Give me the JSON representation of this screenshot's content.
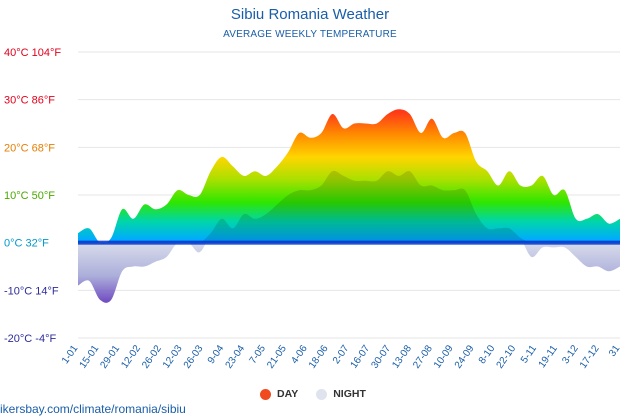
{
  "header": {
    "title": "Sibiu Romania Weather",
    "subtitle": "AVERAGE WEEKLY TEMPERATURE"
  },
  "legend": {
    "day_label": "DAY",
    "night_label": "NIGHT",
    "day_color": "#f04a1e",
    "night_color": "#dfe3ee"
  },
  "source": "ikersbay.com/climate/romania/sibiu",
  "chart_data": {
    "type": "area",
    "title": "Sibiu Romania Weather",
    "subtitle": "AVERAGE WEEKLY TEMPERATURE",
    "ylim": [
      -20,
      40
    ],
    "y_ticks": [
      {
        "value": 40,
        "label": "40°C 104°F",
        "color": "#e3001b"
      },
      {
        "value": 30,
        "label": "30°C 86°F",
        "color": "#e3001b"
      },
      {
        "value": 20,
        "label": "20°C 68°F",
        "color": "#e67e00"
      },
      {
        "value": 10,
        "label": "10°C 50°F",
        "color": "#4aa800"
      },
      {
        "value": 0,
        "label": "0°C 32°F",
        "color": "#0099cc"
      },
      {
        "value": -10,
        "label": "-10°C 14°F",
        "color": "#2d2d99"
      },
      {
        "value": -20,
        "label": "-20°C -4°F",
        "color": "#2d2d99"
      }
    ],
    "x_tick_labels": [
      "1-01",
      "15-01",
      "29-01",
      "12-02",
      "26-02",
      "12-03",
      "26-03",
      "9-04",
      "23-04",
      "7-05",
      "21-05",
      "4-06",
      "18-06",
      "2-07",
      "16-07",
      "30-07",
      "13-08",
      "27-08",
      "10-09",
      "24-09",
      "8-10",
      "22-10",
      "5-11",
      "19-11",
      "3-12",
      "17-12",
      "31"
    ],
    "grid": true,
    "legend_position": "bottom-center",
    "series": [
      {
        "name": "DAY",
        "values": [
          2,
          3,
          0,
          1,
          7,
          5,
          8,
          7,
          8,
          11,
          10,
          10,
          15,
          18,
          16,
          14,
          15,
          14,
          16,
          19,
          23,
          22,
          23,
          27,
          24,
          25,
          25,
          25,
          27,
          28,
          27,
          23,
          26,
          22,
          23,
          23,
          17,
          15,
          12,
          15,
          12,
          12,
          14,
          10,
          11,
          5,
          5,
          6,
          4,
          5
        ]
      },
      {
        "name": "NIGHT",
        "values": [
          -9,
          -8,
          -12,
          -12,
          -6,
          -5,
          -5,
          -4,
          -3,
          0,
          0,
          -2,
          2,
          5,
          3,
          6,
          5,
          6,
          8,
          10,
          11,
          11,
          12,
          15,
          14,
          13,
          13,
          13,
          15,
          14,
          15,
          12,
          12,
          11,
          11,
          11,
          6,
          3,
          3,
          3,
          1,
          -3,
          -1,
          -1,
          -1,
          -3,
          -5,
          -5,
          -6,
          -5
        ]
      }
    ]
  }
}
